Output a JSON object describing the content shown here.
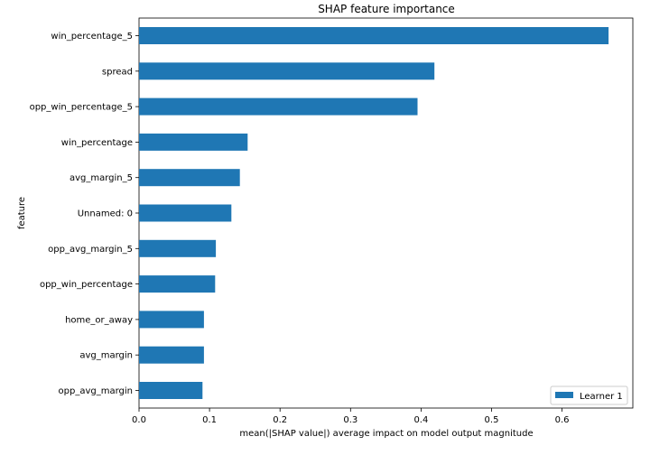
{
  "chart_data": {
    "type": "bar",
    "orientation": "horizontal",
    "title": "SHAP feature importance",
    "xlabel": "mean(|SHAP value|) average impact on model output magnitude",
    "ylabel": "feature",
    "categories": [
      "win_percentage_5",
      "spread",
      "opp_win_percentage_5",
      "win_percentage",
      "avg_margin_5",
      "Unnamed: 0",
      "opp_avg_margin_5",
      "opp_win_percentage",
      "home_or_away",
      "avg_margin",
      "opp_avg_margin"
    ],
    "series": [
      {
        "name": "Learner 1",
        "values": [
          0.666,
          0.419,
          0.395,
          0.154,
          0.143,
          0.131,
          0.109,
          0.108,
          0.092,
          0.092,
          0.09
        ],
        "color": "#1f77b4"
      }
    ],
    "xlim": [
      0,
      0.7
    ],
    "xticks": [
      "0.0",
      "0.1",
      "0.2",
      "0.3",
      "0.4",
      "0.5",
      "0.6"
    ],
    "grid": false,
    "legend_position": "lower-right"
  }
}
